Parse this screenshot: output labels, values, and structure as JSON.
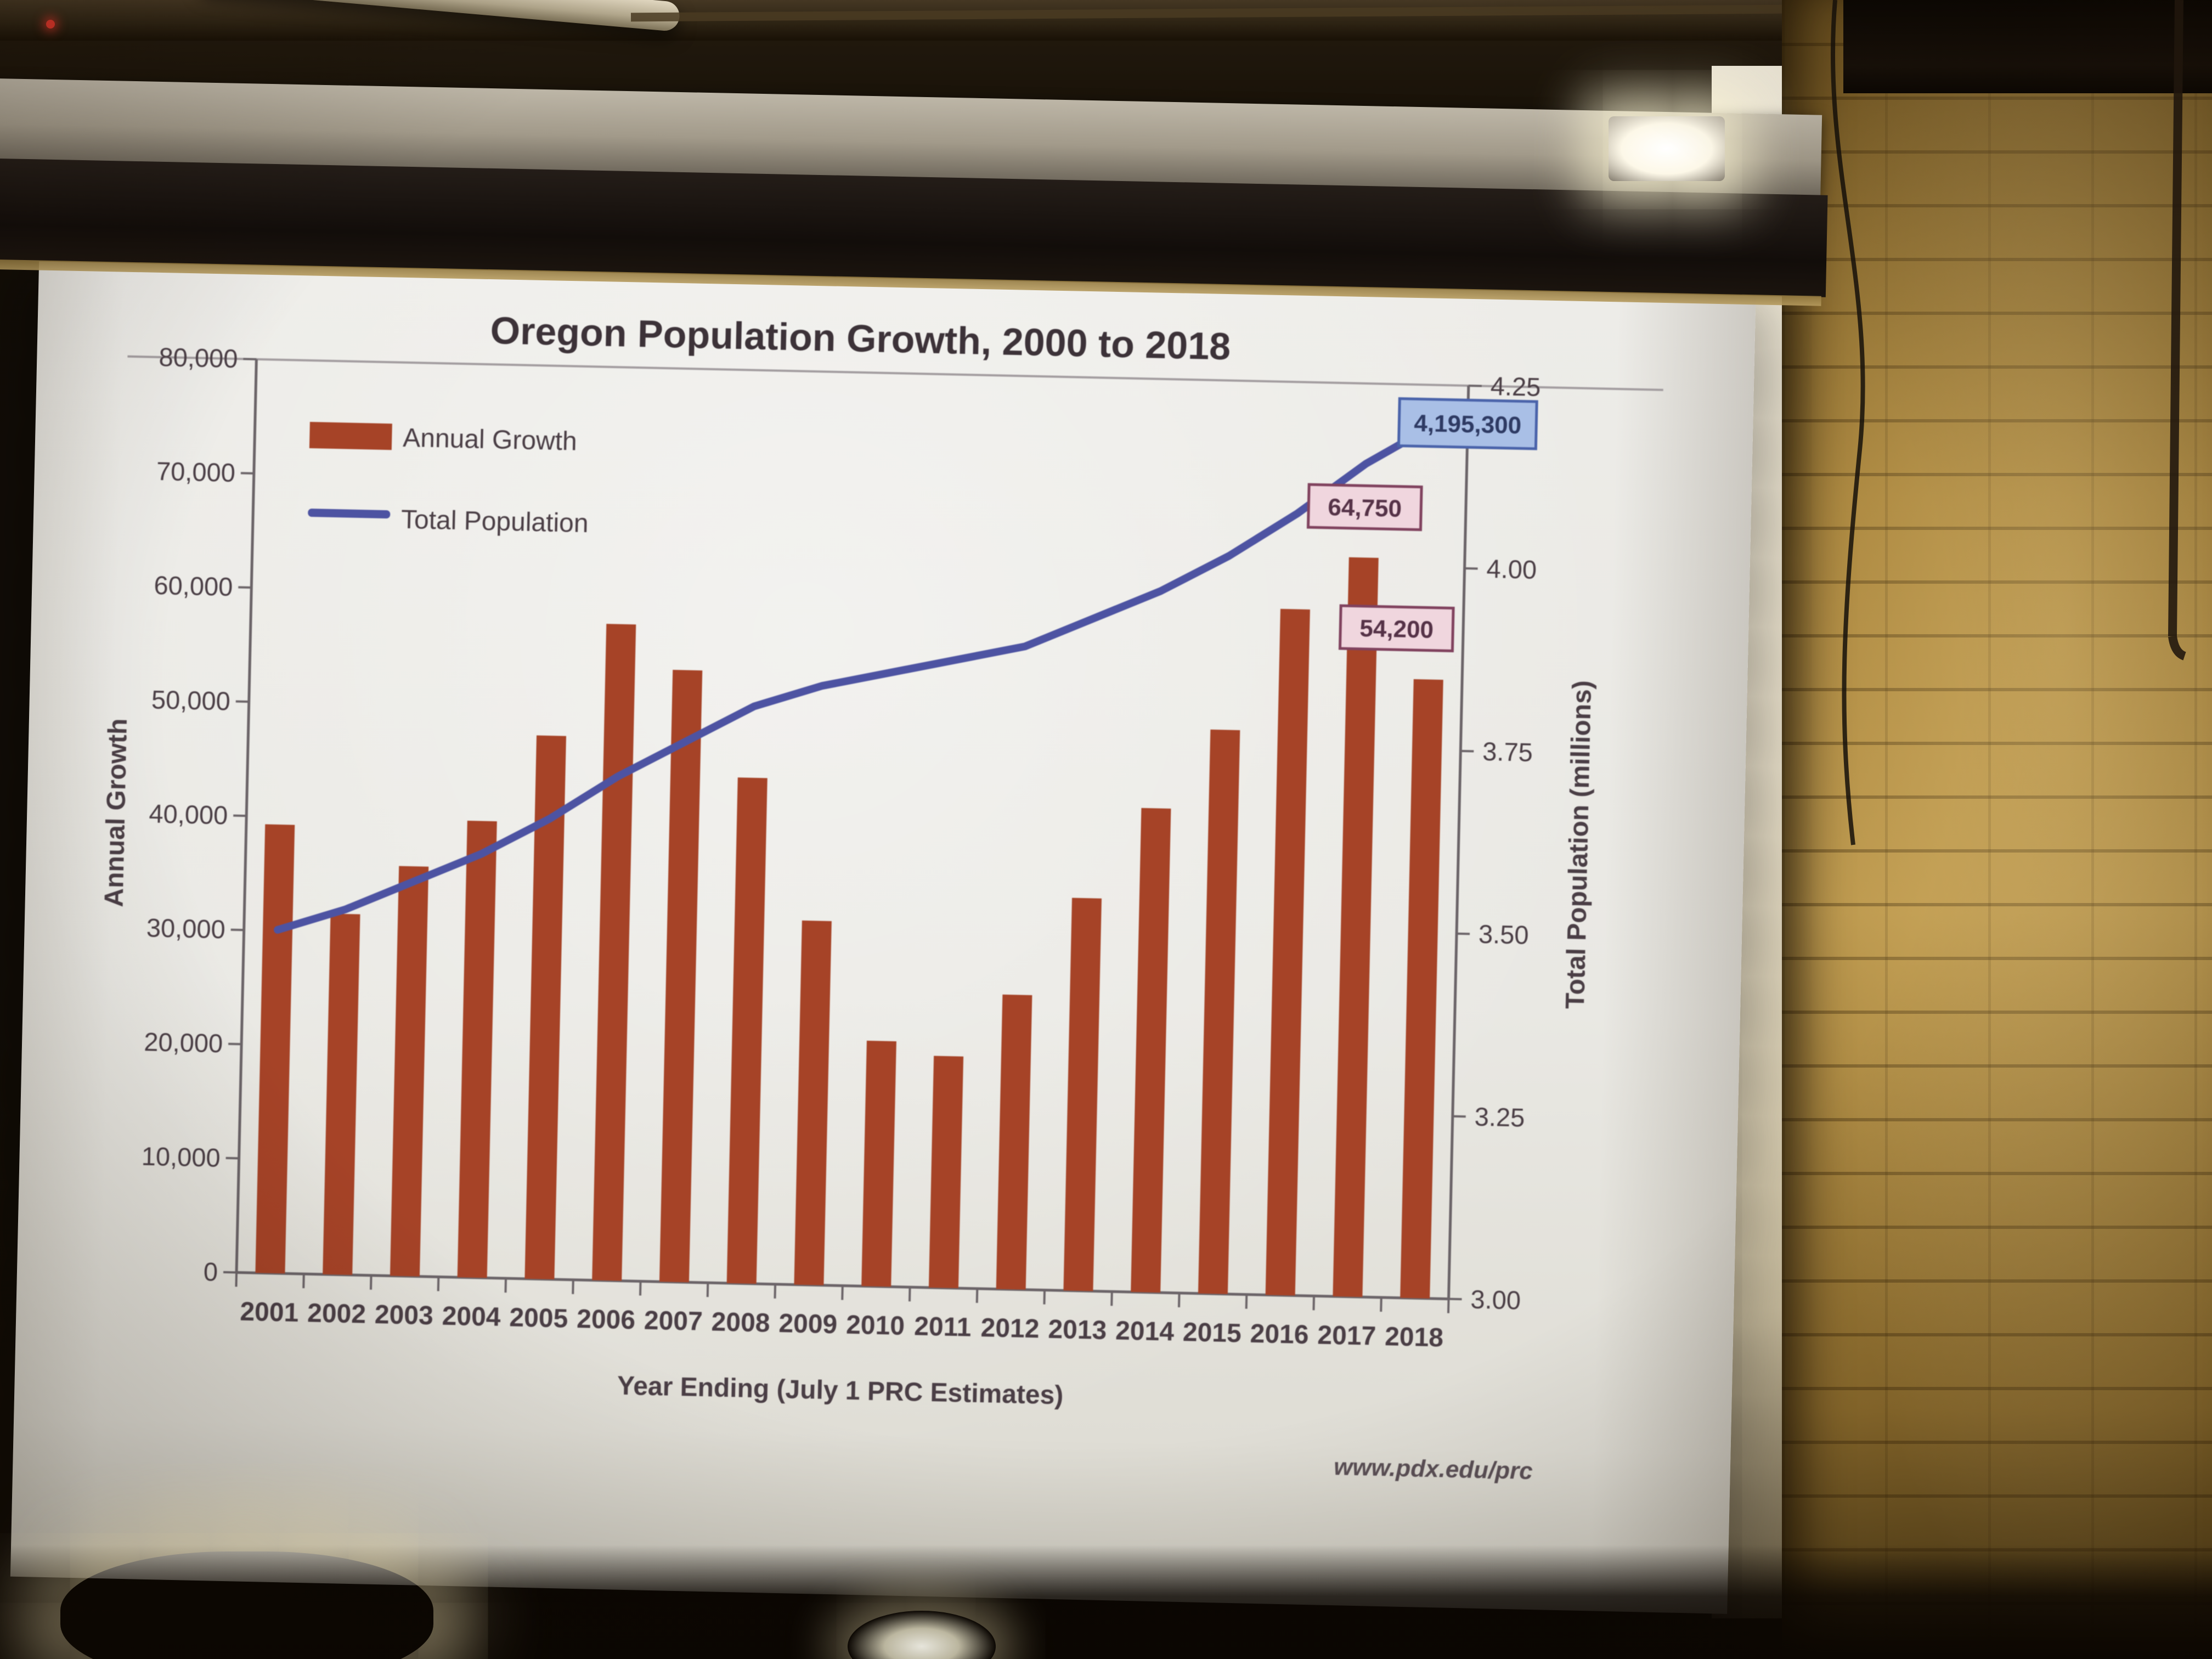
{
  "chart_data": {
    "type": "bar",
    "subtype": "combo-bar-line",
    "title": "Oregon Population Growth, 2000 to 2018",
    "categories": [
      "2001",
      "2002",
      "2003",
      "2004",
      "2005",
      "2006",
      "2007",
      "2008",
      "2009",
      "2010",
      "2011",
      "2012",
      "2013",
      "2014",
      "2015",
      "2016",
      "2017",
      "2018"
    ],
    "series": [
      {
        "name": "Annual Growth",
        "type": "bar",
        "axis": "left",
        "values": [
          39300,
          31600,
          35900,
          40000,
          47600,
          57500,
          53600,
          44300,
          31900,
          21500,
          20300,
          25800,
          34400,
          42400,
          49400,
          60100,
          64750,
          54200
        ]
      },
      {
        "name": "Total Population",
        "type": "line",
        "axis": "right",
        "unit": "millions",
        "values": [
          3.47,
          3.5,
          3.54,
          3.58,
          3.63,
          3.69,
          3.74,
          3.79,
          3.82,
          3.84,
          3.86,
          3.88,
          3.92,
          3.96,
          4.01,
          4.07,
          4.14,
          4.195
        ]
      }
    ],
    "left_axis": {
      "title": "Annual Growth",
      "min": 0,
      "max": 80000,
      "tick_step": 10000,
      "tick_labels": [
        "0",
        "10,000",
        "20,000",
        "30,000",
        "40,000",
        "50,000",
        "60,000",
        "70,000",
        "80,000"
      ]
    },
    "right_axis": {
      "title": "Total Population (millions)",
      "min": 3.0,
      "max": 4.25,
      "tick_step": 0.25,
      "tick_labels": [
        "3.00",
        "3.25",
        "3.50",
        "3.75",
        "4.00",
        "4.25"
      ]
    },
    "xlabel": "Year Ending (July 1 PRC Estimates)",
    "legend": {
      "position": "top-left",
      "entries": [
        "Annual Growth",
        "Total Population"
      ]
    },
    "annotations": [
      {
        "text": "64,750",
        "year": "2017",
        "series": "Annual Growth",
        "style": "pink-box"
      },
      {
        "text": "54,200",
        "year": "2018",
        "series": "Annual Growth",
        "style": "pink-box"
      },
      {
        "text": "4,195,300",
        "year": "2018",
        "series": "Total Population",
        "style": "blue-box"
      }
    ],
    "footer": "www.pdx.edu/prc",
    "grid": "off",
    "colors": {
      "bar": "#a64327",
      "line": "#4d53a2",
      "text": "#4a3e45",
      "title": "#3c3238",
      "axis": "#6b6468",
      "plot_border": "#a39da0",
      "pink_box_fill": "#f0d6de",
      "pink_box_border": "#80425e",
      "pink_box_text": "#553247",
      "blue_box_fill": "#a9bfe6",
      "blue_box_border": "#4a63aa",
      "blue_box_text": "#2e3a63",
      "slide_bg": "#e9e8e4"
    }
  }
}
